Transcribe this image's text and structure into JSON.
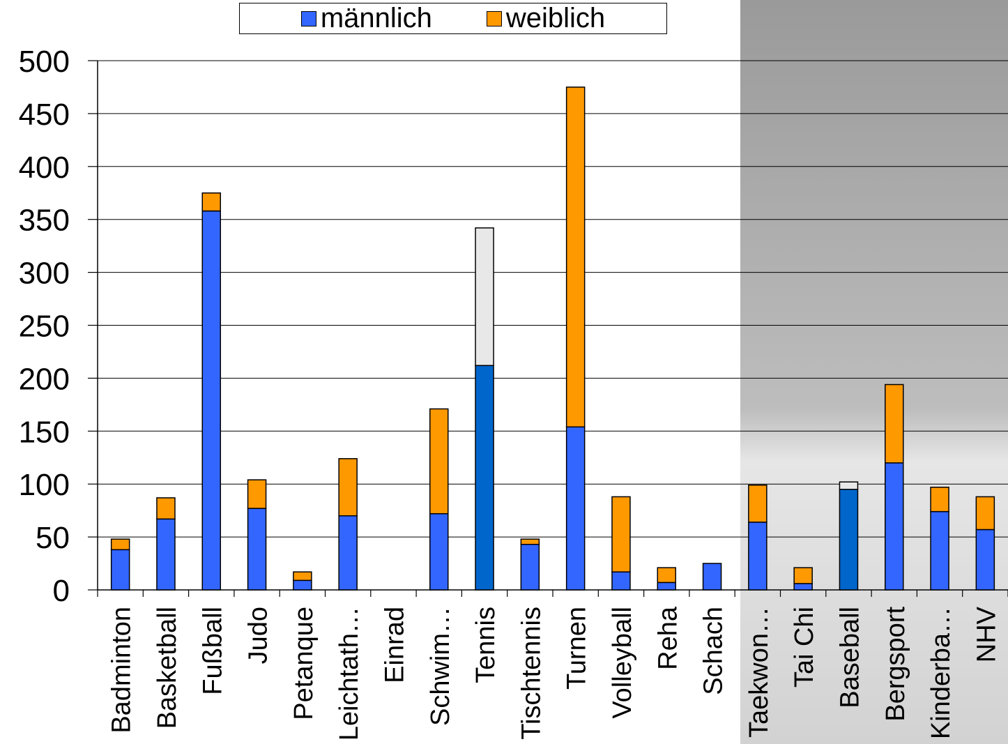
{
  "chart_data": {
    "type": "bar",
    "stacked": true,
    "categories": [
      "Badminton",
      "Basketball",
      "Fußball",
      "Judo",
      "Petanque",
      "Leichtath…",
      "Einrad",
      "Schwim…",
      "Tennis",
      "Tischtennis",
      "Turnen",
      "Volleyball",
      "Reha",
      "Schach",
      "Taekwon…",
      "Tai Chi",
      "Baseball",
      "Bergsport",
      "Kinderba…",
      "NHV"
    ],
    "series": [
      {
        "name": "männlich",
        "color": "#3366ff",
        "values": [
          38,
          67,
          358,
          77,
          9,
          70,
          0,
          72,
          212,
          43,
          154,
          17,
          7,
          25,
          64,
          6,
          95,
          120,
          74,
          57
        ]
      },
      {
        "name": "weiblich",
        "color": "#ff9900",
        "values": [
          10,
          20,
          17,
          27,
          8,
          54,
          0,
          99,
          0,
          5,
          321,
          71,
          14,
          0,
          35,
          15,
          0,
          74,
          23,
          31
        ]
      }
    ],
    "other_segments": [
      {
        "category": "Tennis",
        "value": 130,
        "color": "#e8e8e8"
      },
      {
        "category": "Baseball",
        "value": 7,
        "color": "#e8e8e8"
      }
    ],
    "highlighted_male_color": "#0066cc",
    "highlighted_categories": [
      "Tennis",
      "Baseball"
    ],
    "ylim": [
      0,
      500
    ],
    "yticks": [
      "0",
      "50",
      "100",
      "150",
      "200",
      "250",
      "300",
      "350",
      "400",
      "450",
      "500"
    ],
    "grid": true,
    "legend_position": "top",
    "title": "",
    "xlabel": "",
    "ylabel": ""
  }
}
